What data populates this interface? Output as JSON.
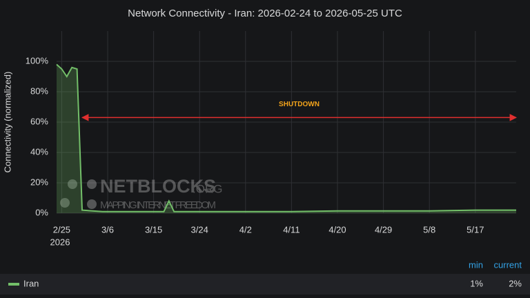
{
  "chart_data": {
    "type": "line",
    "title": "Network Connectivity - Iran: 2026-02-24 to 2026-05-25 UTC",
    "y_label": "Connectivity (normalized)",
    "x_year_label": "2026",
    "x": [
      "2026-02-24",
      "2026-02-25",
      "2026-02-26",
      "2026-02-27",
      "2026-02-28",
      "2026-03-01",
      "2026-03-05",
      "2026-03-10",
      "2026-03-15",
      "2026-03-17",
      "2026-03-18",
      "2026-03-19",
      "2026-03-24",
      "2026-04-02",
      "2026-04-11",
      "2026-04-20",
      "2026-04-29",
      "2026-05-08",
      "2026-05-17",
      "2026-05-25"
    ],
    "series": [
      {
        "name": "Iran",
        "color": "#73bf69",
        "values": [
          98,
          95,
          90,
          96,
          95,
          2,
          1,
          1,
          1,
          1,
          8,
          1,
          1,
          1,
          1,
          1.5,
          1.5,
          1.5,
          2,
          2
        ],
        "legend_stats": {
          "headers": [
            "min",
            "current"
          ],
          "values": [
            1,
            2
          ],
          "value_labels": [
            "1%",
            "2%"
          ]
        }
      }
    ],
    "xlim": [
      "2026-02-24",
      "2026-05-25"
    ],
    "xticks": [
      {
        "value": "2026-02-25",
        "label": "2/25"
      },
      {
        "value": "2026-03-06",
        "label": "3/6"
      },
      {
        "value": "2026-03-15",
        "label": "3/15"
      },
      {
        "value": "2026-03-24",
        "label": "3/24"
      },
      {
        "value": "2026-04-02",
        "label": "4/2"
      },
      {
        "value": "2026-04-11",
        "label": "4/11"
      },
      {
        "value": "2026-04-20",
        "label": "4/20"
      },
      {
        "value": "2026-04-29",
        "label": "4/29"
      },
      {
        "value": "2026-05-08",
        "label": "5/8"
      },
      {
        "value": "2026-05-17",
        "label": "5/17"
      }
    ],
    "ylim": [
      0,
      120
    ],
    "yticks": [
      {
        "value": 0,
        "label": "0%"
      },
      {
        "value": 20,
        "label": "20%"
      },
      {
        "value": 40,
        "label": "40%"
      },
      {
        "value": 60,
        "label": "60%"
      },
      {
        "value": 80,
        "label": "80%"
      },
      {
        "value": 100,
        "label": "100%"
      }
    ],
    "grid": true,
    "annotation": {
      "text": "SHUTDOWN",
      "x_start": "2026-03-01",
      "x_end": "2026-05-25",
      "y": 63,
      "color": "#e02f2f",
      "text_color": "#f2a31b"
    },
    "watermark": {
      "name": "NETBLOCKS",
      "suffix": ".ORG",
      "tagline": "MAPPING INTERNET FREEDOM"
    }
  }
}
